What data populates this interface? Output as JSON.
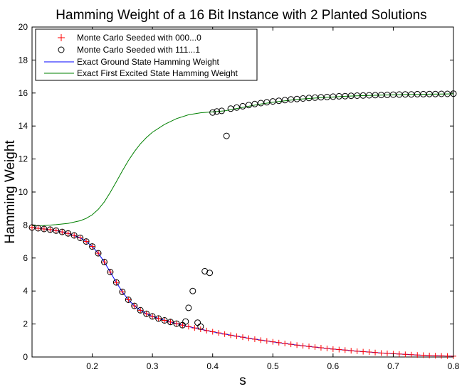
{
  "chart_data": {
    "type": "scatter",
    "title": "Hamming Weight of a 16 Bit Instance with 2 Planted Solutions",
    "xlabel": "s",
    "ylabel": "Hamming Weight",
    "xlim": [
      0.1,
      0.8
    ],
    "ylim": [
      0,
      20
    ],
    "xticks": [
      0.2,
      0.3,
      0.4,
      0.5,
      0.6,
      0.7,
      0.8
    ],
    "yticks": [
      0,
      2,
      4,
      6,
      8,
      10,
      12,
      14,
      16,
      18,
      20
    ],
    "grid": false,
    "legend_position": "top-left",
    "series": [
      {
        "name": "Monte Carlo Seeded with 000...0",
        "kind": "plus-marker",
        "color": "#ff0000",
        "x": [
          0.1,
          0.11,
          0.12,
          0.13,
          0.14,
          0.15,
          0.16,
          0.17,
          0.18,
          0.19,
          0.2,
          0.21,
          0.22,
          0.23,
          0.24,
          0.25,
          0.26,
          0.27,
          0.28,
          0.29,
          0.3,
          0.31,
          0.32,
          0.33,
          0.34,
          0.35,
          0.36,
          0.37,
          0.38,
          0.39,
          0.4,
          0.41,
          0.42,
          0.43,
          0.44,
          0.45,
          0.46,
          0.47,
          0.48,
          0.49,
          0.5,
          0.51,
          0.52,
          0.53,
          0.54,
          0.55,
          0.56,
          0.57,
          0.58,
          0.59,
          0.6,
          0.61,
          0.62,
          0.63,
          0.64,
          0.65,
          0.66,
          0.67,
          0.68,
          0.69,
          0.7,
          0.71,
          0.72,
          0.73,
          0.74,
          0.75,
          0.76,
          0.77,
          0.78,
          0.79,
          0.8
        ],
        "y": [
          7.85,
          7.8,
          7.76,
          7.72,
          7.66,
          7.58,
          7.49,
          7.37,
          7.22,
          7.0,
          6.7,
          6.29,
          5.76,
          5.15,
          4.52,
          3.95,
          3.47,
          3.1,
          2.83,
          2.62,
          2.46,
          2.33,
          2.22,
          2.12,
          2.02,
          1.93,
          1.84,
          1.76,
          1.68,
          1.6,
          1.53,
          1.46,
          1.39,
          1.32,
          1.26,
          1.2,
          1.14,
          1.08,
          1.02,
          0.97,
          0.92,
          0.87,
          0.82,
          0.77,
          0.72,
          0.68,
          0.64,
          0.6,
          0.56,
          0.52,
          0.48,
          0.45,
          0.42,
          0.38,
          0.35,
          0.32,
          0.3,
          0.27,
          0.24,
          0.22,
          0.2,
          0.18,
          0.16,
          0.14,
          0.12,
          0.11,
          0.09,
          0.08,
          0.07,
          0.06,
          0.05
        ]
      },
      {
        "name": "Monte Carlo Seeded with 111...1",
        "kind": "circle-marker",
        "color": "#000000",
        "x": [
          0.1,
          0.11,
          0.12,
          0.13,
          0.14,
          0.15,
          0.16,
          0.17,
          0.18,
          0.19,
          0.2,
          0.21,
          0.22,
          0.23,
          0.24,
          0.25,
          0.26,
          0.27,
          0.28,
          0.29,
          0.3,
          0.31,
          0.32,
          0.33,
          0.34,
          0.35,
          0.355,
          0.36,
          0.367,
          0.375,
          0.38,
          0.387,
          0.395,
          0.4,
          0.407,
          0.415,
          0.423,
          0.43,
          0.44,
          0.45,
          0.46,
          0.47,
          0.48,
          0.49,
          0.5,
          0.51,
          0.52,
          0.53,
          0.54,
          0.55,
          0.56,
          0.57,
          0.58,
          0.59,
          0.6,
          0.61,
          0.62,
          0.63,
          0.64,
          0.65,
          0.66,
          0.67,
          0.68,
          0.69,
          0.7,
          0.71,
          0.72,
          0.73,
          0.74,
          0.75,
          0.76,
          0.77,
          0.78,
          0.79,
          0.8
        ],
        "y": [
          7.85,
          7.8,
          7.76,
          7.72,
          7.66,
          7.58,
          7.49,
          7.37,
          7.22,
          7.0,
          6.7,
          6.29,
          5.76,
          5.15,
          4.52,
          3.95,
          3.47,
          3.1,
          2.83,
          2.62,
          2.46,
          2.33,
          2.22,
          2.12,
          2.02,
          1.93,
          2.15,
          2.98,
          4.0,
          2.08,
          1.85,
          5.2,
          5.1,
          14.82,
          14.88,
          14.92,
          13.4,
          15.05,
          15.12,
          15.2,
          15.27,
          15.33,
          15.39,
          15.44,
          15.49,
          15.53,
          15.57,
          15.61,
          15.64,
          15.67,
          15.7,
          15.72,
          15.74,
          15.76,
          15.78,
          15.8,
          15.81,
          15.83,
          15.84,
          15.85,
          15.86,
          15.87,
          15.88,
          15.89,
          15.9,
          15.91,
          15.92,
          15.92,
          15.93,
          15.93,
          15.94,
          15.94,
          15.95,
          15.95,
          15.96
        ]
      },
      {
        "name": "Exact Ground State Hamming Weight",
        "kind": "line",
        "color": "#0000ff",
        "x": [
          0.1,
          0.12,
          0.14,
          0.16,
          0.18,
          0.19,
          0.2,
          0.21,
          0.22,
          0.23,
          0.24,
          0.25,
          0.26,
          0.27,
          0.28,
          0.29,
          0.3,
          0.32,
          0.34,
          0.36,
          0.38,
          0.4,
          0.42,
          0.44,
          0.46,
          0.48,
          0.5,
          0.52,
          0.54,
          0.56,
          0.58,
          0.6,
          0.62,
          0.64,
          0.66,
          0.68,
          0.7,
          0.72,
          0.74,
          0.76,
          0.78,
          0.8
        ],
        "y": [
          7.85,
          7.76,
          7.66,
          7.49,
          7.22,
          7.0,
          6.7,
          6.29,
          5.76,
          5.15,
          4.52,
          3.95,
          3.47,
          3.1,
          2.83,
          2.62,
          2.46,
          2.22,
          2.02,
          1.84,
          1.68,
          1.53,
          1.39,
          1.26,
          1.14,
          1.02,
          0.92,
          0.82,
          0.72,
          0.64,
          0.56,
          0.48,
          0.42,
          0.35,
          0.3,
          0.24,
          0.2,
          0.16,
          0.12,
          0.09,
          0.07,
          0.05
        ]
      },
      {
        "name": "Exact First Excited State Hamming Weight",
        "kind": "line",
        "color": "#008000",
        "x": [
          0.1,
          0.12,
          0.14,
          0.16,
          0.18,
          0.19,
          0.2,
          0.21,
          0.22,
          0.23,
          0.24,
          0.25,
          0.26,
          0.27,
          0.28,
          0.29,
          0.3,
          0.32,
          0.34,
          0.36,
          0.38,
          0.4,
          0.42,
          0.44,
          0.46,
          0.48,
          0.5,
          0.52,
          0.54,
          0.56,
          0.58,
          0.6,
          0.62,
          0.64,
          0.66,
          0.68,
          0.7,
          0.72,
          0.74,
          0.76,
          0.78,
          0.8
        ],
        "y": [
          7.95,
          7.97,
          8.02,
          8.1,
          8.26,
          8.4,
          8.62,
          8.95,
          9.4,
          9.98,
          10.62,
          11.28,
          11.9,
          12.45,
          12.92,
          13.3,
          13.62,
          14.1,
          14.45,
          14.68,
          14.8,
          14.86,
          14.92,
          15.06,
          15.2,
          15.33,
          15.44,
          15.53,
          15.61,
          15.67,
          15.72,
          15.76,
          15.8,
          15.83,
          15.85,
          15.87,
          15.89,
          15.91,
          15.92,
          15.93,
          15.94,
          15.95
        ]
      }
    ]
  }
}
